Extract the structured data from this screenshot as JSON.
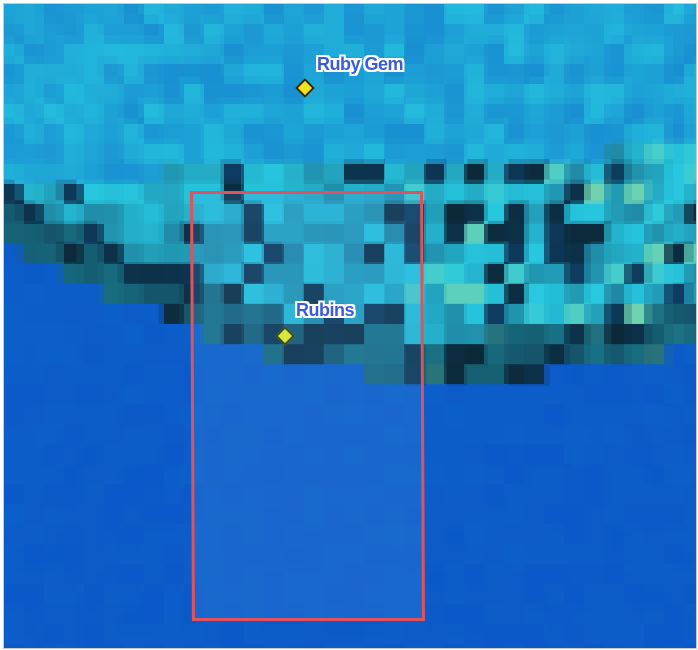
{
  "map": {
    "markers": [
      {
        "label": "Ruby Gem",
        "color": "#f4e21a",
        "icon": "diamond-marker-icon"
      },
      {
        "label": "Rubins",
        "color": "#d8e83a",
        "icon": "diamond-marker-icon"
      }
    ],
    "selection": {
      "border_color": "#e0525e"
    },
    "palette": {
      "deep_water": "#0b58c9",
      "shallow_water": "#27c8e0",
      "reef_dark": "#0d2a3a",
      "reef_light": "#6fd3b0"
    }
  }
}
